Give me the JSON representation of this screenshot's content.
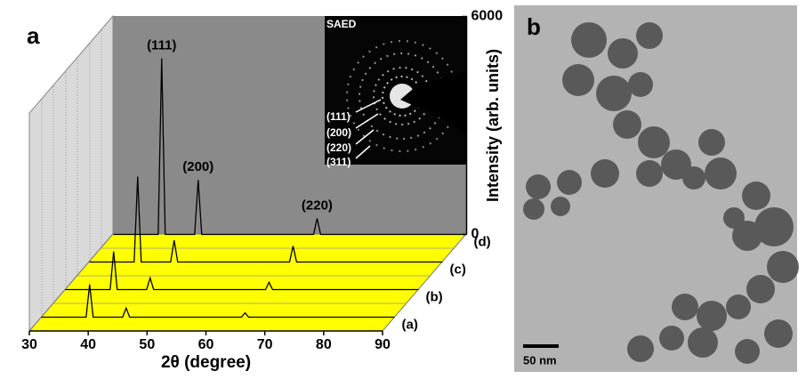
{
  "chart_data": {
    "type": "waterfall",
    "panel_label": "a",
    "x": [
      30,
      37.6,
      38.2,
      38.8,
      43.8,
      44.4,
      45.0,
      64.0,
      64.6,
      65.2,
      90
    ],
    "series": [
      {
        "name": "(a)",
        "color": "#000000",
        "values": [
          0,
          0,
          900,
          0,
          0,
          250,
          0,
          0,
          120,
          0,
          0
        ]
      },
      {
        "name": "(b)",
        "color": "#000000",
        "values": [
          0,
          0,
          1050,
          0,
          0,
          320,
          0,
          0,
          200,
          0,
          0
        ]
      },
      {
        "name": "(c)",
        "color": "#000000",
        "values": [
          0,
          0,
          2350,
          0,
          0,
          600,
          0,
          0,
          440,
          0,
          0
        ]
      },
      {
        "name": "(d)",
        "color": "#000000",
        "values": [
          0,
          0,
          4850,
          0,
          0,
          1500,
          0,
          0,
          440,
          0,
          0
        ]
      }
    ],
    "xlim": [
      30,
      90
    ],
    "xticks": [
      30,
      40,
      50,
      60,
      70,
      80,
      90
    ],
    "xlabel": "2θ (degree)",
    "ylim": [
      0,
      6000
    ],
    "yticks": [
      0,
      6000
    ],
    "ylabel": "Intensity (arb. units)",
    "annotations": [
      {
        "text": "(111)",
        "x": 38.2
      },
      {
        "text": "(200)",
        "x": 44.4
      },
      {
        "text": "(220)",
        "x": 64.6
      }
    ]
  },
  "inset": {
    "title": "SAED",
    "labels": [
      "(111)",
      "(200)",
      "(220)",
      "(311)"
    ]
  },
  "panel_b": {
    "panel_label": "b",
    "scale_bar": "50 nm"
  }
}
